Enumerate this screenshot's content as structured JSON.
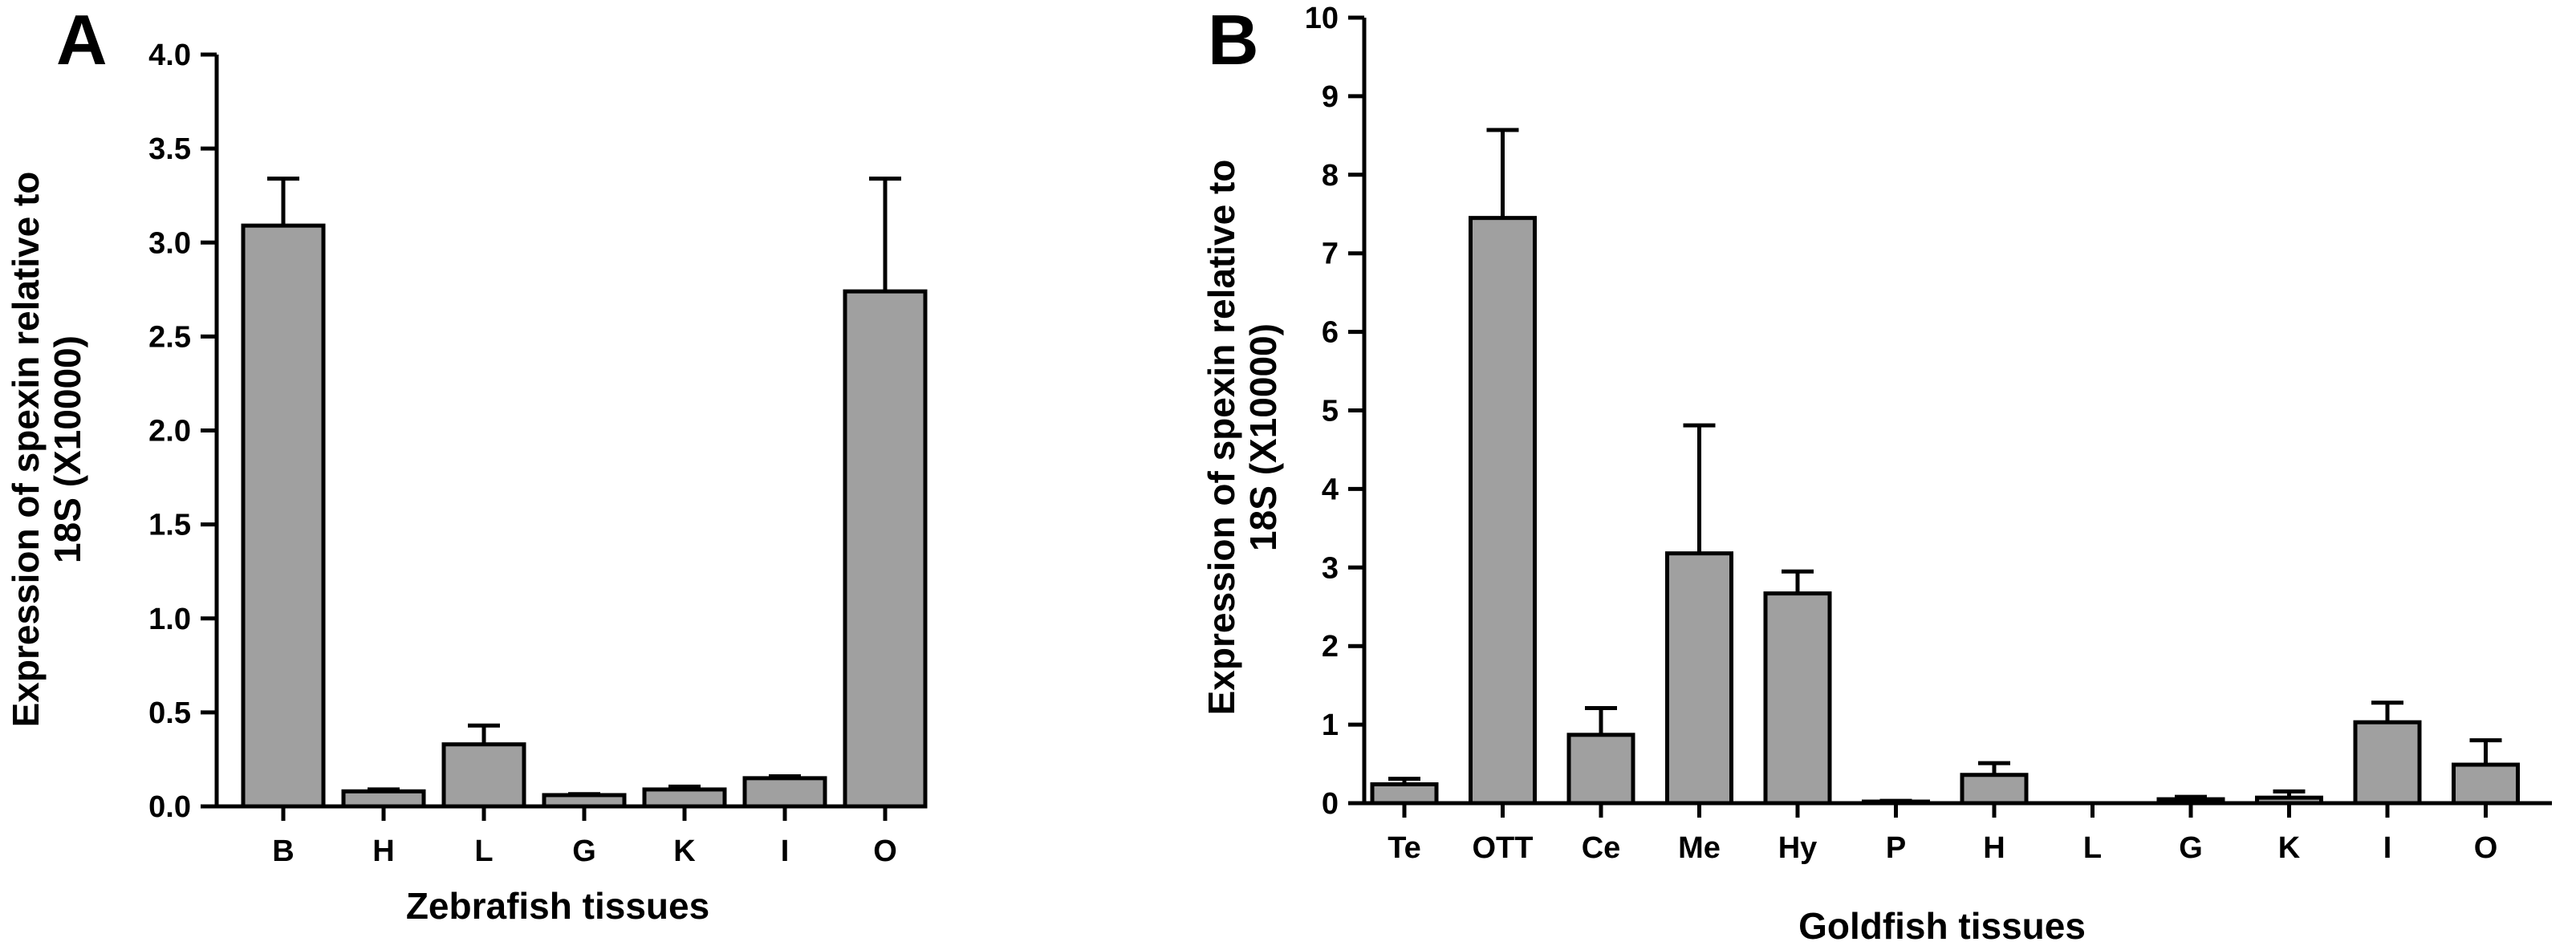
{
  "chart_data": [
    {
      "panel_label": "A",
      "type": "bar",
      "xlabel": "Zebrafish tissues",
      "ylabel_lines": [
        "Expression of spexin relative to",
        "18S (X10000)"
      ],
      "categories": [
        "B",
        "H",
        "L",
        "G",
        "K",
        "I",
        "O"
      ],
      "values": [
        3.09,
        0.08,
        0.33,
        0.06,
        0.09,
        0.15,
        2.74
      ],
      "errors": [
        0.25,
        0.01,
        0.1,
        0.005,
        0.015,
        0.01,
        0.6
      ],
      "ylim": [
        0,
        4.0
      ],
      "yticks": [
        0,
        0.5,
        1.0,
        1.5,
        2.0,
        2.5,
        3.0,
        3.5,
        4.0
      ],
      "ytick_labels": [
        "0.0",
        "0.5",
        "1.0",
        "1.5",
        "2.0",
        "2.5",
        "3.0",
        "3.5",
        "4.0"
      ],
      "bar_color": "#a0a0a0",
      "grid": false,
      "legend": "none"
    },
    {
      "panel_label": "B",
      "type": "bar",
      "xlabel": "Goldfish tissues",
      "ylabel_lines": [
        "Expression of spexin relative to",
        "18S (X10000)"
      ],
      "categories": [
        "Te",
        "OTT",
        "Ce",
        "Me",
        "Hy",
        "P",
        "H",
        "L",
        "G",
        "K",
        "I",
        "O"
      ],
      "values": [
        0.24,
        7.45,
        0.87,
        3.18,
        2.67,
        0.02,
        0.36,
        0.0,
        0.05,
        0.07,
        1.03,
        0.49
      ],
      "errors": [
        0.07,
        1.12,
        0.34,
        1.63,
        0.28,
        0.01,
        0.15,
        0.0,
        0.03,
        0.08,
        0.25,
        0.31
      ],
      "ylim": [
        0,
        10
      ],
      "yticks": [
        0,
        1,
        2,
        3,
        4,
        5,
        6,
        7,
        8,
        9,
        10
      ],
      "ytick_labels": [
        "0",
        "1",
        "2",
        "3",
        "4",
        "5",
        "6",
        "7",
        "8",
        "9",
        "10"
      ],
      "bar_color": "#a0a0a0",
      "grid": false,
      "legend": "none"
    }
  ]
}
